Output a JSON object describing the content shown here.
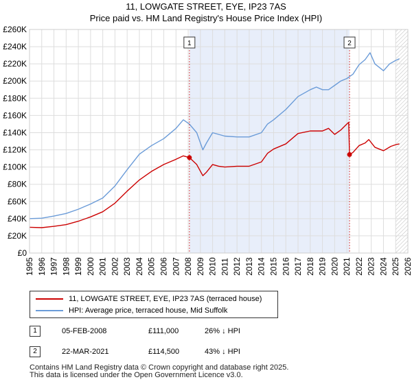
{
  "header": {
    "title_line1": "11, LOWGATE STREET, EYE, IP23 7AS",
    "title_line2": "Price paid vs. HM Land Registry's House Price Index (HPI)"
  },
  "chart_data": {
    "type": "line",
    "x_range": [
      1995,
      2026
    ],
    "ylim": [
      0,
      260000
    ],
    "y_ticks": [
      0,
      20000,
      40000,
      60000,
      80000,
      100000,
      120000,
      140000,
      160000,
      180000,
      200000,
      220000,
      240000,
      260000
    ],
    "y_tick_labels": [
      "£0",
      "£20K",
      "£40K",
      "£60K",
      "£80K",
      "£100K",
      "£120K",
      "£140K",
      "£160K",
      "£180K",
      "£200K",
      "£220K",
      "£240K",
      "£260K"
    ],
    "x_ticks": [
      1995,
      1996,
      1997,
      1998,
      1999,
      2000,
      2001,
      2002,
      2003,
      2004,
      2005,
      2006,
      2007,
      2008,
      2009,
      2010,
      2011,
      2012,
      2013,
      2014,
      2015,
      2016,
      2017,
      2018,
      2019,
      2020,
      2021,
      2022,
      2023,
      2024,
      2025,
      2026
    ],
    "x_tick_labels": [
      "1995",
      "1996",
      "1997",
      "1998",
      "1999",
      "2000",
      "2001",
      "2002",
      "2003",
      "2004",
      "2005",
      "2006",
      "2007",
      "2008",
      "2009",
      "2010",
      "2011",
      "2012",
      "2013",
      "2014",
      "2015",
      "2016",
      "2017",
      "2018",
      "2019",
      "2020",
      "2021",
      "2022",
      "2023",
      "2024",
      "2025",
      "2026"
    ],
    "grid": true,
    "shaded_period": [
      2008.1,
      2021.22
    ],
    "future_hatch_from": 2025.0,
    "series": [
      {
        "name": "11, LOWGATE STREET, EYE, IP23 7AS (terraced house)",
        "color": "#cc0000",
        "x": [
          1995.0,
          1996.0,
          1997.0,
          1998.0,
          1999.0,
          2000.0,
          2001.0,
          2002.0,
          2003.0,
          2004.0,
          2005.0,
          2006.0,
          2007.0,
          2007.6,
          2008.1,
          2008.7,
          2009.2,
          2009.5,
          2010.0,
          2010.5,
          2011.0,
          2012.0,
          2013.0,
          2014.0,
          2014.5,
          2015.0,
          2016.0,
          2017.0,
          2018.0,
          2019.0,
          2019.5,
          2020.0,
          2020.5,
          2021.0,
          2021.15,
          2021.22,
          2021.5,
          2022.0,
          2022.5,
          2022.8,
          2023.3,
          2024.0,
          2024.6,
          2025.0,
          2025.3
        ],
        "y": [
          30000,
          29500,
          31000,
          33000,
          37000,
          42000,
          48000,
          58000,
          72000,
          85000,
          95000,
          103000,
          109000,
          113000,
          111000,
          103000,
          90000,
          94000,
          103000,
          101000,
          100000,
          101000,
          101000,
          106000,
          116000,
          121000,
          127000,
          139000,
          142000,
          142000,
          145000,
          138000,
          143000,
          150000,
          152000,
          114500,
          117000,
          125000,
          128000,
          132000,
          123000,
          119000,
          124000,
          126000,
          127000
        ]
      },
      {
        "name": "HPI: Average price, terraced house, Mid Suffolk",
        "color": "#6a9bd8",
        "x": [
          1995.0,
          1996.0,
          1997.0,
          1998.0,
          1999.0,
          2000.0,
          2001.0,
          2002.0,
          2003.0,
          2004.0,
          2005.0,
          2006.0,
          2007.0,
          2007.6,
          2008.1,
          2008.7,
          2009.2,
          2009.5,
          2010.0,
          2011.0,
          2012.0,
          2013.0,
          2014.0,
          2014.5,
          2015.0,
          2016.0,
          2017.0,
          2018.0,
          2018.5,
          2019.0,
          2019.5,
          2020.0,
          2020.5,
          2021.0,
          2021.5,
          2022.0,
          2022.5,
          2022.9,
          2023.3,
          2024.0,
          2024.5,
          2025.0,
          2025.3
        ],
        "y": [
          40000,
          40500,
          43000,
          46000,
          51000,
          57000,
          64000,
          78000,
          97000,
          115000,
          125000,
          133000,
          145000,
          155000,
          150000,
          140000,
          120000,
          128000,
          140000,
          136000,
          135000,
          135000,
          140000,
          150000,
          155000,
          167000,
          182000,
          190000,
          193000,
          190000,
          190000,
          195000,
          200000,
          203000,
          208000,
          219000,
          225000,
          233000,
          220000,
          212000,
          220000,
          224000,
          226000
        ]
      }
    ],
    "annotations": [
      {
        "label": "1",
        "x": 2008.1,
        "y": 111000
      },
      {
        "label": "2",
        "x": 2021.22,
        "y": 114500
      }
    ]
  },
  "legend": {
    "items": [
      {
        "label": "11, LOWGATE STREET, EYE, IP23 7AS (terraced house)",
        "color": "#cc0000"
      },
      {
        "label": "HPI: Average price, terraced house, Mid Suffolk",
        "color": "#6a9bd8"
      }
    ]
  },
  "transactions": [
    {
      "num": "1",
      "date": "05-FEB-2008",
      "price": "£111,000",
      "hpi": "26% ↓ HPI"
    },
    {
      "num": "2",
      "date": "22-MAR-2021",
      "price": "£114,500",
      "hpi": "43% ↓ HPI"
    }
  ],
  "footer": {
    "line1": "Contains HM Land Registry data © Crown copyright and database right 2025.",
    "line2": "This data is licensed under the Open Government Licence v3.0."
  }
}
